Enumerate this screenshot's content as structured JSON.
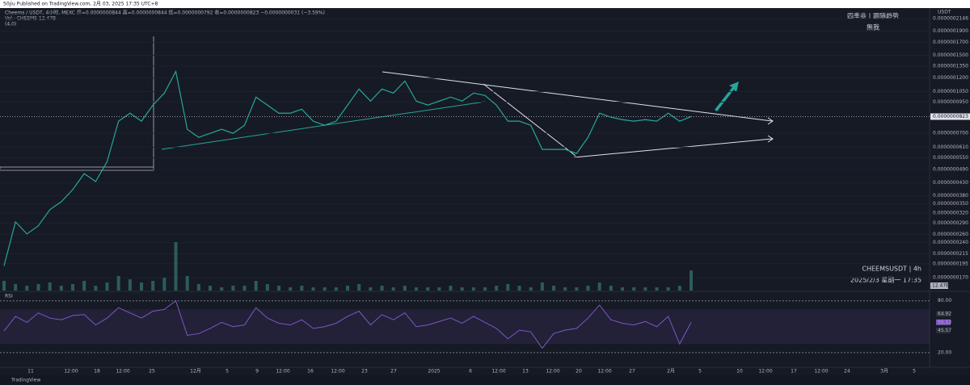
{
  "header": {
    "published": "50jiu Published on TradingView.com, 2月 03, 2025 17:35 UTC+8",
    "symbol_line": "Cheems / USDT, 4小时, MEXC  开=0.0000000844 高=0.0000000844 低=0.0000000792 收=0.0000000823 −0.0000000031 (−3.59%)",
    "volume_line": "Vol · CHEEMS  12.47B",
    "extra": "(4,0)"
  },
  "watermark": {
    "line1": "四季韭丨跟随趋势",
    "line2": "無我",
    "symbol": "CHEEMSUSDT | 4h",
    "time": "2025/2/3 星期一 17:35"
  },
  "chart_data": {
    "type": "line",
    "name": "CHEEMSUSDT",
    "color": "#26a69a",
    "log": true,
    "currency": "USDT",
    "ylim": [
      1.5e-08,
      2.2e-07
    ],
    "yticks": [
      {
        "value": 2.146e-07,
        "label": "0.0000002146"
      },
      {
        "value": 1.9e-07,
        "label": "0.0000001900"
      },
      {
        "value": 1.7e-07,
        "label": "0.0000001700"
      },
      {
        "value": 1.5e-07,
        "label": "0.0000001500"
      },
      {
        "value": 1.35e-07,
        "label": "0.0000001350"
      },
      {
        "value": 1.2e-07,
        "label": "0.0000001200"
      },
      {
        "value": 1.05e-07,
        "label": "0.0000001050"
      },
      {
        "value": 9.5e-08,
        "label": "0.0000000950"
      },
      {
        "value": 7e-08,
        "label": "0.0000000700"
      },
      {
        "value": 6.1e-08,
        "label": "0.0000000610"
      },
      {
        "value": 5.5e-08,
        "label": "0.0000000550"
      },
      {
        "value": 4.9e-08,
        "label": "0.0000000490"
      },
      {
        "value": 4.3e-08,
        "label": "0.0000000430"
      },
      {
        "value": 3.8e-08,
        "label": "0.0000000380"
      },
      {
        "value": 3.5e-08,
        "label": "0.0000000350"
      },
      {
        "value": 3.2e-08,
        "label": "0.0000000320"
      },
      {
        "value": 2.9e-08,
        "label": "0.0000000290"
      },
      {
        "value": 2.6e-08,
        "label": "0.0000000260"
      },
      {
        "value": 2.4e-08,
        "label": "0.0000000240"
      },
      {
        "value": 2.15e-08,
        "label": "0.0000000215"
      },
      {
        "value": 1.95e-08,
        "label": "0.0000000195"
      },
      {
        "value": 1.7e-08,
        "label": "0.0000000170"
      }
    ],
    "last_price": {
      "value": 8.23e-08,
      "label": "0.0000000823"
    },
    "values": [
      1.91e-08,
      2.94e-08,
      2.61e-08,
      2.83e-08,
      3.31e-08,
      3.58e-08,
      4.03e-08,
      4.71e-08,
      4.36e-08,
      5.3e-08,
      7.87e-08,
      8.51e-08,
      7.87e-08,
      9.21e-08,
      1.036e-07,
      1.281e-07,
      7.27e-08,
      6.72e-08,
      6.99e-08,
      7.27e-08,
      6.99e-08,
      7.56e-08,
      9.96e-08,
      9.21e-08,
      8.51e-08,
      8.51e-08,
      8.85e-08,
      7.87e-08,
      7.56e-08,
      7.87e-08,
      9.21e-08,
      1.078e-07,
      9.58e-08,
      1.078e-07,
      1.036e-07,
      1.166e-07,
      9.58e-08,
      9.21e-08,
      9.58e-08,
      9.96e-08,
      9.58e-08,
      1.036e-07,
      1.012e-07,
      9.21e-08,
      7.87e-08,
      7.87e-08,
      7.56e-08,
      5.97e-08,
      5.97e-08,
      5.97e-08,
      5.74e-08,
      6.72e-08,
      8.51e-08,
      8.18e-08,
      7.99e-08,
      7.87e-08,
      7.99e-08,
      7.87e-08,
      8.51e-08,
      7.87e-08,
      8.23e-08
    ],
    "volume": {
      "color": "#2b5d5a",
      "label": "12.47B",
      "values": [
        6,
        4,
        3,
        4,
        5,
        3,
        4,
        6,
        3,
        5,
        9,
        7,
        5,
        6,
        8,
        30,
        9,
        4,
        3,
        2,
        3,
        3,
        6,
        4,
        3,
        2,
        3,
        2,
        2,
        2,
        3,
        4,
        2,
        3,
        2,
        3,
        2,
        2,
        2,
        3,
        2,
        2,
        2,
        3,
        4,
        3,
        2,
        5,
        3,
        2,
        2,
        3,
        5,
        3,
        2,
        2,
        2,
        2,
        2,
        3,
        12.47
      ]
    },
    "time_labels": [
      "11",
      "12:00",
      "18",
      "12:00",
      "25",
      "12月",
      "5",
      "9",
      "12:00",
      "16",
      "12:00",
      "23",
      "27",
      "2025",
      "6",
      "12:00",
      "13",
      "12:00",
      "20",
      "12:00",
      "27",
      "2月",
      "5",
      "10",
      "12:00",
      "17",
      "12:00",
      "24",
      "3月",
      "5"
    ]
  },
  "rsi": {
    "title": "RSI",
    "color": "#7e57c2",
    "ylim": [
      3,
      90
    ],
    "band": [
      30,
      70
    ],
    "yticks": [
      {
        "value": 80,
        "label": "80.00"
      },
      {
        "value": 20,
        "label": "20.00"
      }
    ],
    "tags": [
      {
        "value": 64.92,
        "label": "64.92"
      },
      {
        "value": 55.13,
        "label": "55.13"
      },
      {
        "value": 45.57,
        "label": "45.57"
      }
    ],
    "values": [
      45,
      62,
      55,
      66,
      60,
      58,
      63,
      64,
      52,
      60,
      72,
      66,
      60,
      68,
      70,
      80,
      40,
      42,
      48,
      55,
      50,
      52,
      72,
      60,
      54,
      52,
      58,
      48,
      50,
      54,
      62,
      68,
      52,
      64,
      58,
      66,
      50,
      52,
      56,
      60,
      54,
      62,
      55,
      48,
      36,
      46,
      44,
      25,
      42,
      46,
      48,
      60,
      75,
      58,
      54,
      52,
      56,
      50,
      62,
      30,
      55.13
    ]
  },
  "footer": {
    "brand": "TradingView"
  }
}
